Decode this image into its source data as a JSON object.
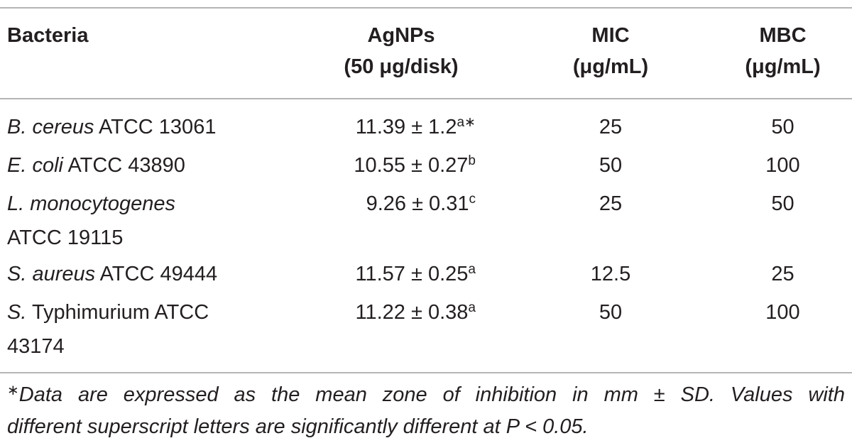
{
  "table": {
    "headers": {
      "bacteria": "Bacteria",
      "agnps": [
        "AgNPs",
        "(50 μg/disk)"
      ],
      "mic": [
        "MIC",
        "(μg/mL)"
      ],
      "mbc": [
        "MBC",
        "(μg/mL)"
      ]
    },
    "rows": [
      {
        "species": "B. cereus",
        "strain": " ATCC 13061",
        "strain2": "",
        "agnps": "11.39 ± 1.2",
        "sup": "a∗",
        "mic": "25",
        "mbc": "50"
      },
      {
        "species": "E. coli",
        "strain": " ATCC 43890",
        "strain2": "",
        "agnps": "10.55 ± 0.27",
        "sup": "b",
        "mic": "50",
        "mbc": "100"
      },
      {
        "species": "L. monocytogenes",
        "strain": "",
        "strain2": "ATCC 19115",
        "agnps": "9.26 ± 0.31",
        "sup": "c",
        "mic": "25",
        "mbc": "50"
      },
      {
        "species": "S. aureus",
        "strain": " ATCC 49444",
        "strain2": "",
        "agnps": "11.57 ± 0.25",
        "sup": "a",
        "mic": "12.5",
        "mbc": "25"
      },
      {
        "species": "S.",
        "strain": " Typhimurium ATCC",
        "strain2": "43174",
        "agnps": "11.22 ± 0.38",
        "sup": "a",
        "mic": "50",
        "mbc": "100"
      }
    ]
  },
  "footnote": {
    "marker": "∗",
    "line1": "Data are expressed as the mean zone of inhibition in mm ± SD. Values with",
    "line2": "different superscript letters are significantly different at P < 0.05."
  }
}
